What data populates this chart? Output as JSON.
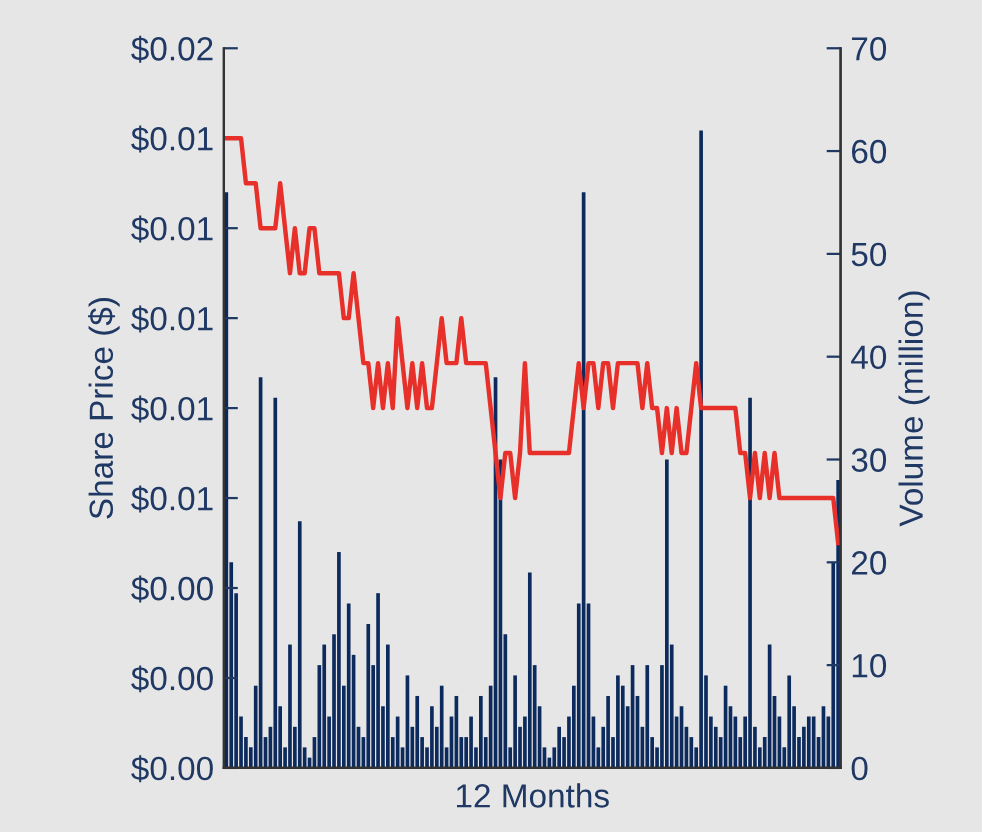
{
  "chart_data": {
    "type": "line",
    "xlabel": "12 Months",
    "ylabel": "Share Price ($)",
    "y2label": "Volume (million)",
    "categories": [
      null,
      null,
      null,
      null,
      null,
      null,
      null,
      null,
      null,
      null,
      null,
      null,
      null,
      null,
      null,
      null,
      null,
      null,
      null,
      null,
      null,
      null,
      null,
      null,
      null,
      null,
      null,
      null,
      null,
      null,
      null,
      null,
      null,
      null,
      null,
      null,
      null,
      null,
      null,
      null,
      null,
      null,
      null,
      null,
      null,
      null,
      null,
      null,
      null,
      null,
      null,
      null,
      null,
      null,
      null,
      null,
      null,
      null,
      null,
      null,
      null,
      null,
      null,
      null,
      null,
      null,
      null,
      null,
      null,
      null,
      null,
      null,
      null,
      null,
      null,
      null,
      null,
      null,
      null,
      null,
      null,
      null,
      null,
      null,
      null,
      null,
      null,
      null,
      null,
      null,
      null,
      null,
      null,
      null,
      null,
      null,
      null,
      null,
      null,
      null,
      null,
      null,
      null,
      null,
      null,
      null,
      null,
      null,
      null,
      null,
      null,
      null,
      null,
      null,
      null,
      null,
      null,
      null,
      null,
      null,
      null,
      null,
      null,
      null,
      null,
      null
    ],
    "ylim": [
      0,
      0.016
    ],
    "yticks": [
      {
        "value": 0,
        "label": "$0.00"
      },
      {
        "value": 0.002,
        "label": "$0.00"
      },
      {
        "value": 0.004,
        "label": "$0.00"
      },
      {
        "value": 0.006,
        "label": "$0.01"
      },
      {
        "value": 0.008,
        "label": "$0.01"
      },
      {
        "value": 0.01,
        "label": "$0.01"
      },
      {
        "value": 0.012,
        "label": "$0.01"
      },
      {
        "value": 0.014,
        "label": "$0.01"
      },
      {
        "value": 0.016,
        "label": "$0.02"
      }
    ],
    "y2lim": [
      0,
      70
    ],
    "y2ticks": [
      0,
      10,
      20,
      30,
      40,
      50,
      60,
      70
    ],
    "grid": false,
    "series": [
      {
        "type": "bar",
        "axis": "y2",
        "color": "#0d2a5c",
        "values": [
          56,
          20,
          17,
          5,
          3,
          2,
          8,
          38,
          3,
          4,
          36,
          6,
          2,
          12,
          4,
          24,
          2,
          1,
          3,
          10,
          12,
          5,
          13,
          21,
          8,
          16,
          11,
          4,
          3,
          14,
          10,
          17,
          6,
          12,
          3,
          5,
          2,
          9,
          4,
          7,
          3,
          2,
          6,
          4,
          8,
          2,
          5,
          7,
          3,
          3,
          5,
          2,
          7,
          3,
          8,
          38,
          30,
          13,
          2,
          9,
          4,
          5,
          19,
          10,
          6,
          2,
          1,
          2,
          4,
          3,
          5,
          8,
          16,
          56,
          16,
          5,
          2,
          4,
          7,
          3,
          9,
          8,
          6,
          10,
          7,
          4,
          10,
          3,
          2,
          10,
          30,
          12,
          5,
          6,
          4,
          3,
          2,
          62,
          9,
          5,
          4,
          3,
          8,
          6,
          5,
          3,
          5,
          36,
          4,
          2,
          3,
          12,
          7,
          5,
          2,
          9,
          6,
          3,
          4,
          5,
          5,
          3,
          6,
          5,
          20,
          28
        ]
      },
      {
        "color": "#e8302a",
        "values": [
          0.014,
          0.014,
          0.014,
          0.014,
          0.013,
          0.013,
          0.013,
          0.012,
          0.012,
          0.012,
          0.012,
          0.013,
          0.012,
          0.011,
          0.012,
          0.011,
          0.011,
          0.012,
          0.012,
          0.011,
          0.011,
          0.011,
          0.011,
          0.011,
          0.01,
          0.01,
          0.011,
          0.01,
          0.009,
          0.009,
          0.008,
          0.009,
          0.008,
          0.009,
          0.008,
          0.01,
          0.009,
          0.008,
          0.009,
          0.008,
          0.009,
          0.008,
          0.008,
          0.009,
          0.01,
          0.009,
          0.009,
          0.009,
          0.01,
          0.009,
          0.009,
          0.009,
          0.009,
          0.009,
          0.008,
          0.007,
          0.006,
          0.007,
          0.007,
          0.006,
          0.007,
          0.009,
          0.007,
          0.007,
          0.007,
          0.007,
          0.007,
          0.007,
          0.007,
          0.007,
          0.007,
          0.008,
          0.009,
          0.008,
          0.009,
          0.009,
          0.008,
          0.009,
          0.009,
          0.008,
          0.009,
          0.009,
          0.009,
          0.009,
          0.009,
          0.008,
          0.009,
          0.008,
          0.008,
          0.007,
          0.008,
          0.007,
          0.008,
          0.007,
          0.007,
          0.008,
          0.009,
          0.008,
          0.008,
          0.008,
          0.008,
          0.008,
          0.008,
          0.008,
          0.008,
          0.007,
          0.007,
          0.006,
          0.007,
          0.006,
          0.007,
          0.006,
          0.007,
          0.006,
          0.006,
          0.006,
          0.006,
          0.006,
          0.006,
          0.006,
          0.006,
          0.006,
          0.006,
          0.006,
          0.006,
          0.005
        ]
      }
    ]
  }
}
